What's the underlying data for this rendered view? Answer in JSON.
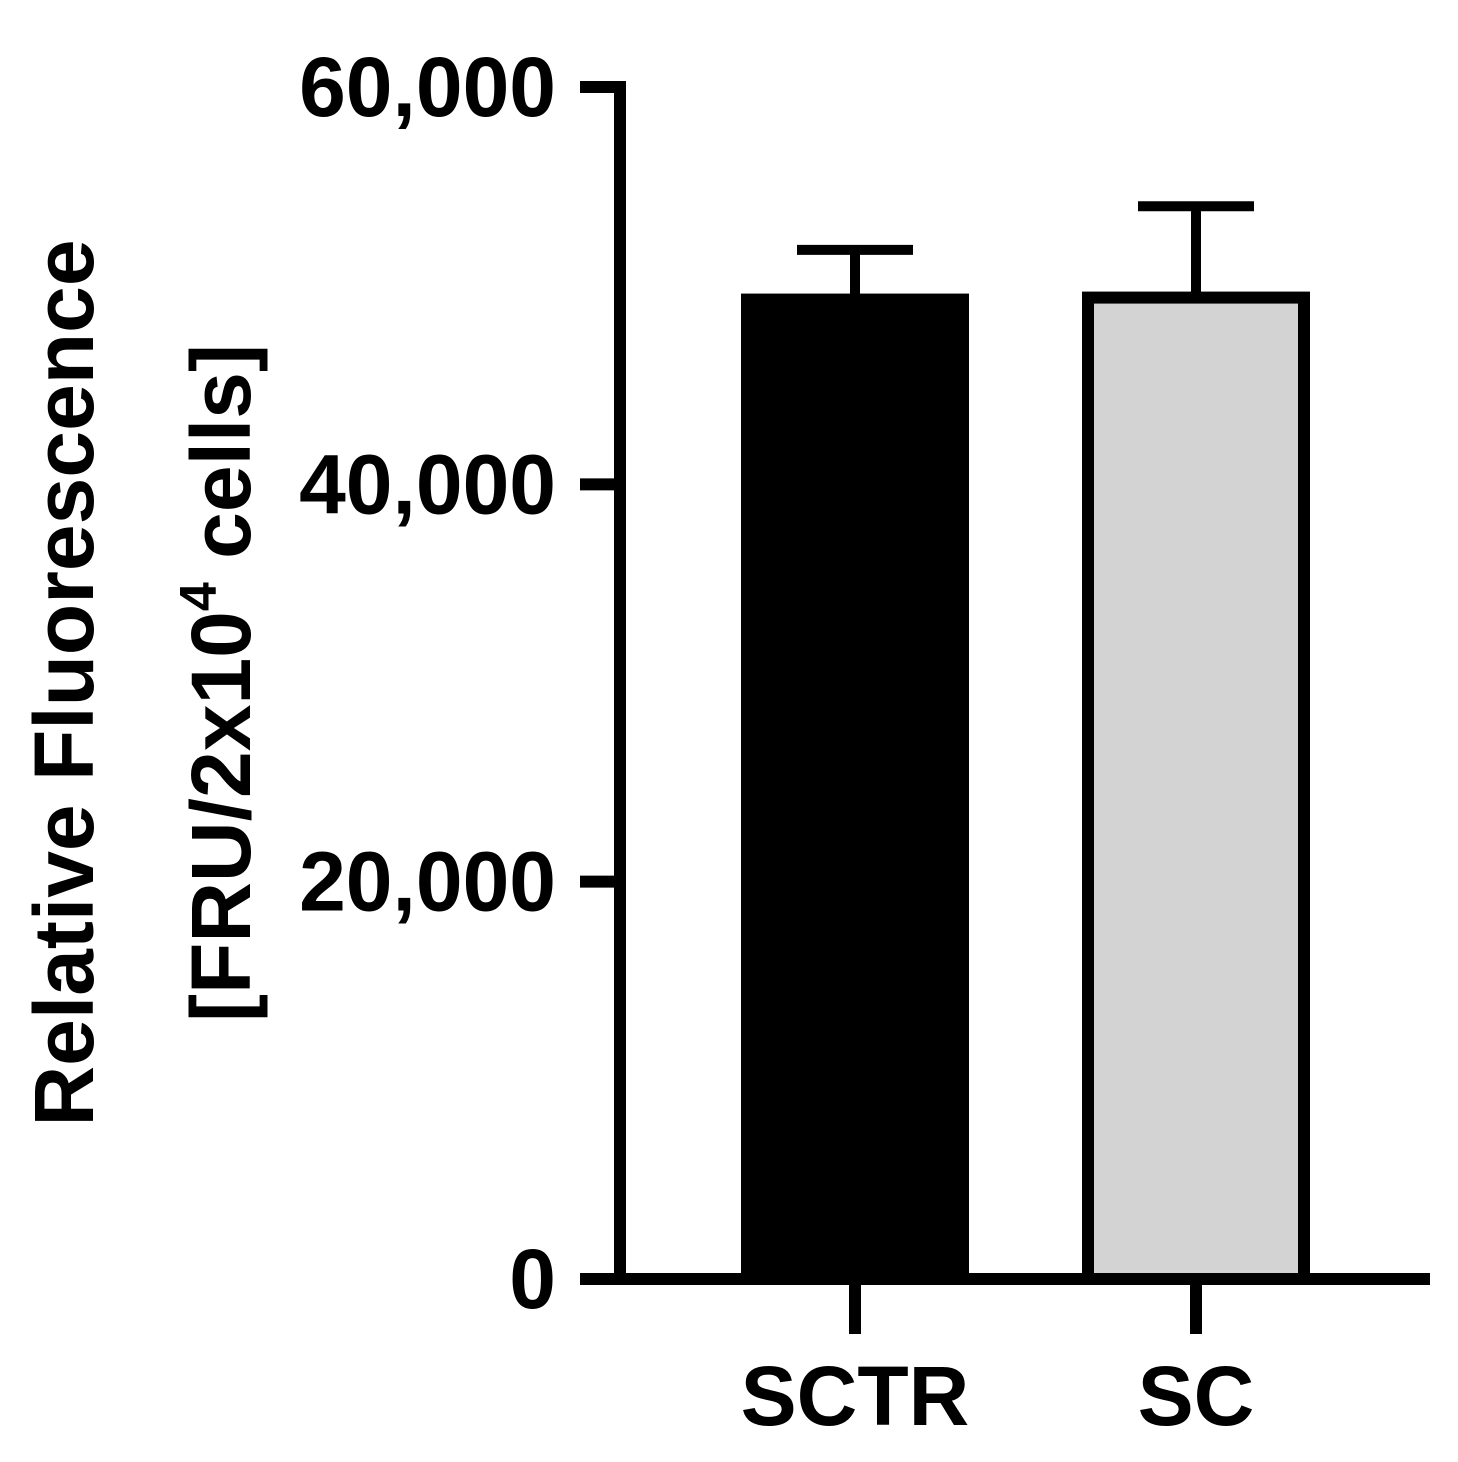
{
  "chart_data": {
    "type": "bar",
    "categories": [
      "SCTR",
      "SC"
    ],
    "values": [
      49300,
      49400
    ],
    "errors": [
      2500,
      4600
    ],
    "bar_colors": [
      "#000000",
      "#d3d3d3"
    ],
    "bar_outline": "#000000",
    "ylim": [
      0,
      60000
    ],
    "yticks": [
      0,
      20000,
      40000,
      60000
    ],
    "ytick_labels": [
      "0",
      "20,000",
      "40,000",
      "60,000"
    ],
    "ylabel_line1": "Relative Fluorescence",
    "ylabel_line2_prefix": "[FRU/2x10",
    "ylabel_line2_sup": "4",
    "ylabel_line2_suffix": " cells]",
    "xlabel": "",
    "grid": false
  }
}
